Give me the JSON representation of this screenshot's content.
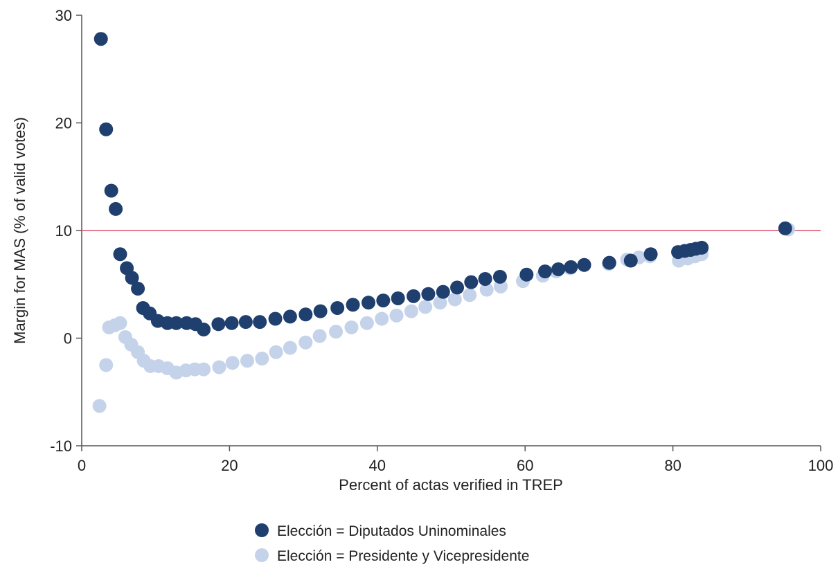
{
  "chart_data": {
    "type": "scatter",
    "xlabel": "Percent of actas verified in TREP",
    "ylabel": "Margin for MAS (% of valid votes)",
    "xlim": [
      0,
      100
    ],
    "ylim": [
      -10,
      30
    ],
    "x_ticks": [
      0,
      20,
      40,
      60,
      80,
      100
    ],
    "y_ticks": [
      -10,
      0,
      10,
      20,
      30
    ],
    "grid": false,
    "legend_position": "bottom",
    "reference_line": {
      "y": 10,
      "color": "#d9546b"
    },
    "series": [
      {
        "name": "Elección = Diputados Uninominales",
        "color": "#1f3f6e",
        "points": [
          [
            2.6,
            27.8
          ],
          [
            3.3,
            19.4
          ],
          [
            4.0,
            13.7
          ],
          [
            4.6,
            12.0
          ],
          [
            5.2,
            7.8
          ],
          [
            6.1,
            6.5
          ],
          [
            6.8,
            5.6
          ],
          [
            7.6,
            4.6
          ],
          [
            8.3,
            2.8
          ],
          [
            9.2,
            2.3
          ],
          [
            10.3,
            1.6
          ],
          [
            11.6,
            1.4
          ],
          [
            12.8,
            1.4
          ],
          [
            14.2,
            1.4
          ],
          [
            15.4,
            1.3
          ],
          [
            16.5,
            0.8
          ],
          [
            18.5,
            1.3
          ],
          [
            20.3,
            1.4
          ],
          [
            22.2,
            1.5
          ],
          [
            24.1,
            1.5
          ],
          [
            26.2,
            1.8
          ],
          [
            28.2,
            2.0
          ],
          [
            30.3,
            2.2
          ],
          [
            32.3,
            2.5
          ],
          [
            34.6,
            2.8
          ],
          [
            36.7,
            3.1
          ],
          [
            38.8,
            3.3
          ],
          [
            40.8,
            3.5
          ],
          [
            42.8,
            3.7
          ],
          [
            44.9,
            3.9
          ],
          [
            46.9,
            4.1
          ],
          [
            48.9,
            4.3
          ],
          [
            50.8,
            4.7
          ],
          [
            52.7,
            5.2
          ],
          [
            54.6,
            5.5
          ],
          [
            56.6,
            5.7
          ],
          [
            60.2,
            5.9
          ],
          [
            62.7,
            6.2
          ],
          [
            64.5,
            6.4
          ],
          [
            66.2,
            6.6
          ],
          [
            68.0,
            6.8
          ],
          [
            71.4,
            7.0
          ],
          [
            74.3,
            7.2
          ],
          [
            77.0,
            7.8
          ],
          [
            80.7,
            8.0
          ],
          [
            81.6,
            8.1
          ],
          [
            82.4,
            8.2
          ],
          [
            83.1,
            8.3
          ],
          [
            83.9,
            8.4
          ],
          [
            95.2,
            10.2
          ]
        ]
      },
      {
        "name": "Elección = Presidente y Vicepresidente",
        "color": "#c4d3ea",
        "points": [
          [
            2.4,
            -6.3
          ],
          [
            3.3,
            -2.5
          ],
          [
            3.7,
            1.0
          ],
          [
            4.5,
            1.2
          ],
          [
            5.2,
            1.4
          ],
          [
            5.9,
            0.1
          ],
          [
            6.7,
            -0.6
          ],
          [
            7.6,
            -1.3
          ],
          [
            8.4,
            -2.1
          ],
          [
            9.3,
            -2.6
          ],
          [
            10.4,
            -2.6
          ],
          [
            11.6,
            -2.8
          ],
          [
            12.8,
            -3.2
          ],
          [
            14.1,
            -3.0
          ],
          [
            15.3,
            -2.9
          ],
          [
            16.5,
            -2.9
          ],
          [
            18.6,
            -2.7
          ],
          [
            20.4,
            -2.3
          ],
          [
            22.4,
            -2.1
          ],
          [
            24.4,
            -1.9
          ],
          [
            26.3,
            -1.3
          ],
          [
            28.2,
            -0.9
          ],
          [
            30.3,
            -0.4
          ],
          [
            32.2,
            0.2
          ],
          [
            34.4,
            0.6
          ],
          [
            36.5,
            1.0
          ],
          [
            38.6,
            1.4
          ],
          [
            40.6,
            1.8
          ],
          [
            42.6,
            2.1
          ],
          [
            44.6,
            2.5
          ],
          [
            46.5,
            2.9
          ],
          [
            48.5,
            3.3
          ],
          [
            50.5,
            3.6
          ],
          [
            52.5,
            4.0
          ],
          [
            54.8,
            4.5
          ],
          [
            56.7,
            4.8
          ],
          [
            59.7,
            5.3
          ],
          [
            62.4,
            5.8
          ],
          [
            64.2,
            6.2
          ],
          [
            66.1,
            6.5
          ],
          [
            68.0,
            6.8
          ],
          [
            71.3,
            6.9
          ],
          [
            73.8,
            7.3
          ],
          [
            75.4,
            7.5
          ],
          [
            76.9,
            7.6
          ],
          [
            80.8,
            7.2
          ],
          [
            82.0,
            7.4
          ],
          [
            83.0,
            7.6
          ],
          [
            83.9,
            7.8
          ],
          [
            95.6,
            10.1
          ]
        ]
      }
    ]
  }
}
